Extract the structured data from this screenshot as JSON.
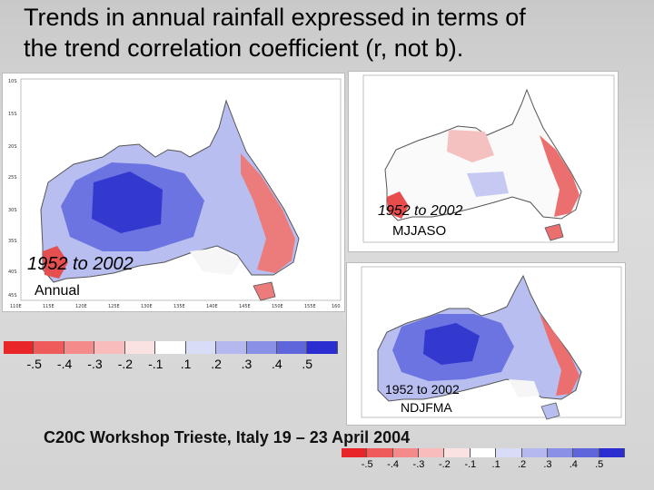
{
  "title": {
    "line1": "Trends in annual  rainfall expressed in terms of",
    "line2": "the trend correlation coefficient (r, not b)."
  },
  "panels": {
    "annual": {
      "period": "1952 to 2002",
      "season": "Annual",
      "lat_labels": [
        "10S",
        "15S",
        "20S",
        "25S",
        "30S",
        "35S",
        "40S",
        "45S"
      ],
      "lon_labels": [
        "110E",
        "115E",
        "120E",
        "125E",
        "130E",
        "135E",
        "140E",
        "145E",
        "150E",
        "155E",
        "160"
      ]
    },
    "mjjaso": {
      "period": "1952 to 2002",
      "season": "MJJASO"
    },
    "ndjfma": {
      "period": "1952 to 2002",
      "season": "NDJFMA"
    }
  },
  "legend": {
    "colors": [
      "#e8262a",
      "#ef5a5a",
      "#f48a8a",
      "#f8bcbc",
      "#fbe2e2",
      "#ffffff",
      "#d9dcf6",
      "#b4b8ef",
      "#8a90e6",
      "#5f66dc",
      "#2a2ed0"
    ],
    "ticks": [
      "-.5",
      "-.4",
      "-.3",
      "-.2",
      "-.1",
      ".1",
      ".2",
      ".3",
      ".4",
      ".5"
    ]
  },
  "footer": "C20C Workshop Trieste, Italy 19 – 23 April 2004"
}
